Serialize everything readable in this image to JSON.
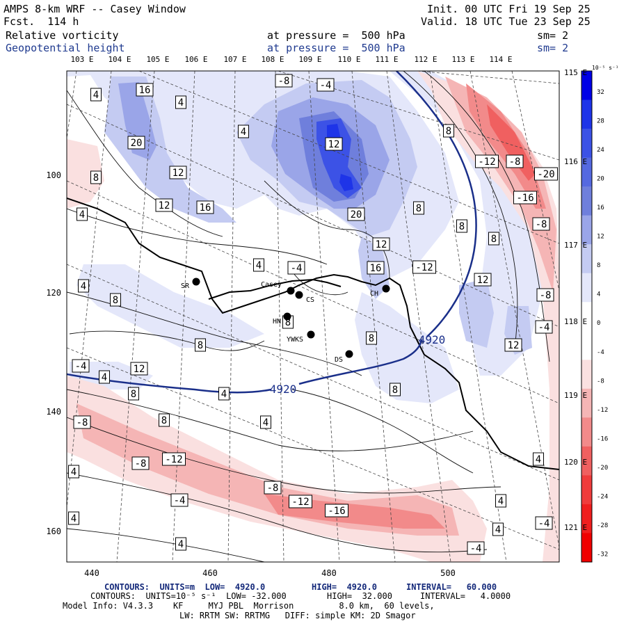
{
  "header": {
    "title": "AMPS 8-km WRF -- Casey Window",
    "forecast": "Fcst.  114 h",
    "init": "Init. 00 UTC Fri 19 Sep 25",
    "valid": "Valid. 18 UTC Tue 23 Sep 25",
    "field1_name": "Relative vorticity",
    "field1_level": "at pressure =  500 hPa",
    "field1_sm": "sm= 2",
    "field2_name": "Geopotential height",
    "field2_level": "at pressure =  500 hPa",
    "field2_sm": "sm= 2"
  },
  "axes": {
    "x_ticks": [
      "440",
      "460",
      "480",
      "500"
    ],
    "y_ticks": [
      "100",
      "120",
      "140",
      "160"
    ],
    "lon_labels": [
      "103 E",
      "104 E",
      "105 E",
      "106 E",
      "107 E",
      "108 E",
      "109 E",
      "110 E",
      "111 E",
      "112 E",
      "113 E",
      "114 E"
    ],
    "lon_right_labels": [
      "115 E",
      "116 E",
      "117 E",
      "118 E",
      "119 E",
      "120 E",
      "121 E"
    ]
  },
  "colorbar": {
    "units": "10⁻⁵ s⁻¹",
    "ticks": [
      "32",
      "28",
      "24",
      "20",
      "16",
      "12",
      "8",
      "4",
      "0",
      "-4",
      "-8",
      "-12",
      "-16",
      "-20",
      "-24",
      "-28",
      "-32"
    ],
    "colors": [
      "#0000e6",
      "#1e34e8",
      "#3c52e6",
      "#5569e0",
      "#6f7fdc",
      "#9aa5e8",
      "#c4cbf2",
      "#e4e7fa",
      "#ffffff",
      "#ffffff",
      "#fae0e0",
      "#f5b5b5",
      "#f28a8a",
      "#f06060",
      "#f03c3c",
      "#f01e1e",
      "#f00000"
    ]
  },
  "stations": [
    {
      "name": "SR"
    },
    {
      "name": "Casey"
    },
    {
      "name": "CS"
    },
    {
      "name": "HN"
    },
    {
      "name": "YWKS"
    },
    {
      "name": "DS"
    },
    {
      "name": "CH"
    }
  ],
  "height_contour_label": "4920",
  "contour_labels": [
    {
      "text": "16"
    },
    {
      "text": "4"
    },
    {
      "text": "4"
    },
    {
      "text": "-8"
    },
    {
      "text": "-4"
    },
    {
      "text": "20"
    },
    {
      "text": "4"
    },
    {
      "text": "12"
    },
    {
      "text": "8"
    },
    {
      "text": "8"
    },
    {
      "text": "12"
    },
    {
      "text": "12"
    },
    {
      "text": "16"
    },
    {
      "text": "20"
    },
    {
      "text": "12"
    },
    {
      "text": "16"
    },
    {
      "text": "4"
    },
    {
      "text": "-4"
    },
    {
      "text": "8"
    },
    {
      "text": "8"
    },
    {
      "text": "8"
    },
    {
      "text": "-12"
    },
    {
      "text": "-12"
    },
    {
      "text": "-8"
    },
    {
      "text": "-20"
    },
    {
      "text": "-16"
    },
    {
      "text": "-8"
    },
    {
      "text": "-8"
    },
    {
      "text": "-4"
    },
    {
      "text": "12"
    },
    {
      "text": "12"
    },
    {
      "text": "8"
    },
    {
      "text": "4"
    },
    {
      "text": "4"
    },
    {
      "text": "8"
    },
    {
      "text": "8"
    },
    {
      "text": "8"
    },
    {
      "text": "8"
    },
    {
      "text": "12"
    },
    {
      "text": "-4"
    },
    {
      "text": "4"
    },
    {
      "text": "8"
    },
    {
      "text": "4"
    },
    {
      "text": "4"
    },
    {
      "text": "-8"
    },
    {
      "text": "8"
    },
    {
      "text": "-8"
    },
    {
      "text": "-12"
    },
    {
      "text": "4"
    },
    {
      "text": "4"
    },
    {
      "text": "-8"
    },
    {
      "text": "-4"
    },
    {
      "text": "-12"
    },
    {
      "text": "-16"
    },
    {
      "text": "4"
    },
    {
      "text": "4"
    },
    {
      "text": "-4"
    },
    {
      "text": "4"
    },
    {
      "text": "-4"
    },
    {
      "text": "4"
    }
  ],
  "footer": {
    "line1_a": "CONTOURS:  UNITS=m  LOW=  4920.0",
    "line1_b": "HIGH=  4920.0",
    "line1_c": "INTERVAL=   60.000",
    "line2_a": "CONTOURS:  UNITS=10⁻⁵ s⁻¹  LOW= -32.000",
    "line2_b": "HIGH=  32.000",
    "line2_c": "INTERVAL=   4.0000",
    "line3": "Model Info: V4.3.3    KF     MYJ PBL  Morrison         8.0 km,  60 levels,",
    "line4": "LW: RRTM SW: RRTMG   DIFF: simple KM: 2D Smagor"
  }
}
